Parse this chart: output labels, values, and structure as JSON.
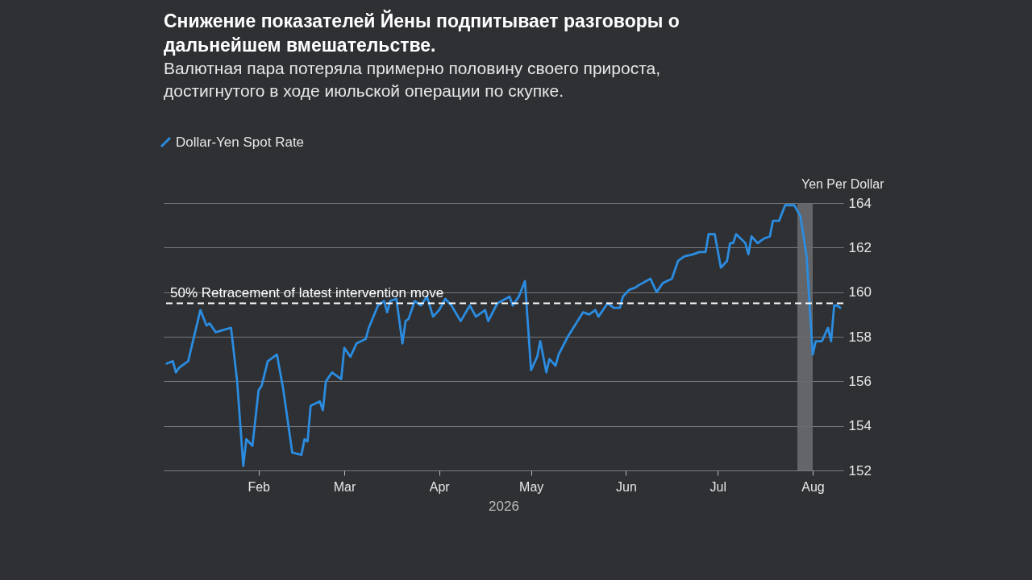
{
  "chart_data": {
    "type": "line",
    "title": "Снижение показателей Йены подпитывает разговоры о дальнейшем вмешательстве.",
    "subtitle": "Валютная пара потеряла примерно половину своего прироста, достигнутого в ходе июльской операции по скупке.",
    "xlabel": "2026",
    "ylabel": "Yen Per Dollar",
    "x": [
      "2026-01-02",
      "2026-01-04",
      "2026-01-05",
      "2026-01-06",
      "2026-01-09",
      "2026-01-13",
      "2026-01-15",
      "2026-01-16",
      "2026-01-18",
      "2026-01-23",
      "2026-01-25",
      "2026-01-27",
      "2026-01-28",
      "2026-01-30",
      "2026-02-01",
      "2026-02-02",
      "2026-02-04",
      "2026-02-07",
      "2026-02-09",
      "2026-02-12",
      "2026-02-15",
      "2026-02-16",
      "2026-02-17",
      "2026-02-18",
      "2026-02-21",
      "2026-02-22",
      "2026-02-23",
      "2026-02-25",
      "2026-02-28",
      "2026-03-01",
      "2026-03-03",
      "2026-03-05",
      "2026-03-08",
      "2026-03-09",
      "2026-03-12",
      "2026-03-14",
      "2026-03-15",
      "2026-03-16",
      "2026-03-18",
      "2026-03-20",
      "2026-03-21",
      "2026-03-22",
      "2026-03-24",
      "2026-03-26",
      "2026-03-28",
      "2026-03-30",
      "2026-04-01",
      "2026-04-03",
      "2026-04-05",
      "2026-04-08",
      "2026-04-11",
      "2026-04-13",
      "2026-04-16",
      "2026-04-17",
      "2026-04-20",
      "2026-04-24",
      "2026-04-25",
      "2026-04-27",
      "2026-04-29",
      "2026-05-01",
      "2026-05-03",
      "2026-05-04",
      "2026-05-06",
      "2026-05-07",
      "2026-05-09",
      "2026-05-10",
      "2026-05-13",
      "2026-05-18",
      "2026-05-20",
      "2026-05-22",
      "2026-05-23",
      "2026-05-26",
      "2026-05-28",
      "2026-05-30",
      "2026-05-31",
      "2026-06-02",
      "2026-06-04",
      "2026-06-05",
      "2026-06-09",
      "2026-06-11",
      "2026-06-13",
      "2026-06-16",
      "2026-06-18",
      "2026-06-19",
      "2026-06-20",
      "2026-06-23",
      "2026-06-25",
      "2026-06-27",
      "2026-06-28",
      "2026-06-30",
      "2026-07-02",
      "2026-07-04",
      "2026-07-05",
      "2026-07-06",
      "2026-07-07",
      "2026-07-10",
      "2026-07-11",
      "2026-07-12",
      "2026-07-14",
      "2026-07-16",
      "2026-07-18",
      "2026-07-19",
      "2026-07-21",
      "2026-07-23",
      "2026-07-24",
      "2026-07-26",
      "2026-07-28",
      "2026-07-30",
      "2026-08-01",
      "2026-08-02",
      "2026-08-04",
      "2026-08-06",
      "2026-08-07",
      "2026-08-08",
      "2026-08-09",
      "2026-08-10"
    ],
    "series": [
      {
        "name": "Dollar-Yen Spot Rate",
        "color": "#2b8ce0",
        "values": [
          156.8,
          156.9,
          156.4,
          156.6,
          156.9,
          159.2,
          158.5,
          158.6,
          158.2,
          158.4,
          156.0,
          152.2,
          153.4,
          153.1,
          155.6,
          155.8,
          156.9,
          157.2,
          155.7,
          152.8,
          152.7,
          153.4,
          153.3,
          154.9,
          155.1,
          154.7,
          156.0,
          156.4,
          156.1,
          157.5,
          157.1,
          157.7,
          157.9,
          158.4,
          159.4,
          159.6,
          159.1,
          159.6,
          159.7,
          157.7,
          158.7,
          158.8,
          159.6,
          159.4,
          159.8,
          158.9,
          159.2,
          159.7,
          159.4,
          158.7,
          159.4,
          158.9,
          159.2,
          158.7,
          159.5,
          159.8,
          159.4,
          159.8,
          160.5,
          156.5,
          157.1,
          157.8,
          156.4,
          157.0,
          156.7,
          157.2,
          158.0,
          159.1,
          159.0,
          159.2,
          158.9,
          159.5,
          159.3,
          159.3,
          159.8,
          160.1,
          160.2,
          160.3,
          160.6,
          160.0,
          160.4,
          160.6,
          161.4,
          161.5,
          161.6,
          161.7,
          161.8,
          161.8,
          162.6,
          162.6,
          161.1,
          161.4,
          162.2,
          162.2,
          162.6,
          162.2,
          161.7,
          162.5,
          162.2,
          162.4,
          162.5,
          163.2,
          163.2,
          163.9,
          163.9,
          163.9,
          163.4,
          161.6,
          157.2,
          157.8,
          157.8,
          158.4,
          157.8,
          159.4,
          159.4,
          159.3
        ]
      }
    ],
    "xlim": [
      "2026-01-01",
      "2026-08-11"
    ],
    "xticks": [
      {
        "value": "2026-02-01",
        "label": "Feb"
      },
      {
        "value": "2026-03-01",
        "label": "Mar"
      },
      {
        "value": "2026-04-01",
        "label": "Apr"
      },
      {
        "value": "2026-05-01",
        "label": "May"
      },
      {
        "value": "2026-06-01",
        "label": "Jun"
      },
      {
        "value": "2026-07-01",
        "label": "Jul"
      },
      {
        "value": "2026-08-01",
        "label": "Aug"
      }
    ],
    "ylim": [
      152,
      164
    ],
    "yticks": [
      152,
      154,
      156,
      158,
      160,
      162,
      164
    ],
    "grid": "y",
    "legend": "top left",
    "ref_lines": [
      {
        "axis": "y",
        "value": 159.5,
        "label": "50% Retracement of latest intervention move",
        "color": "#ffffff",
        "line_style": "dashed"
      }
    ],
    "bands": [
      {
        "axis": "x",
        "from": "2026-07-27",
        "to": "2026-08-01",
        "label": null,
        "color": "#6a6c6f"
      }
    ]
  }
}
